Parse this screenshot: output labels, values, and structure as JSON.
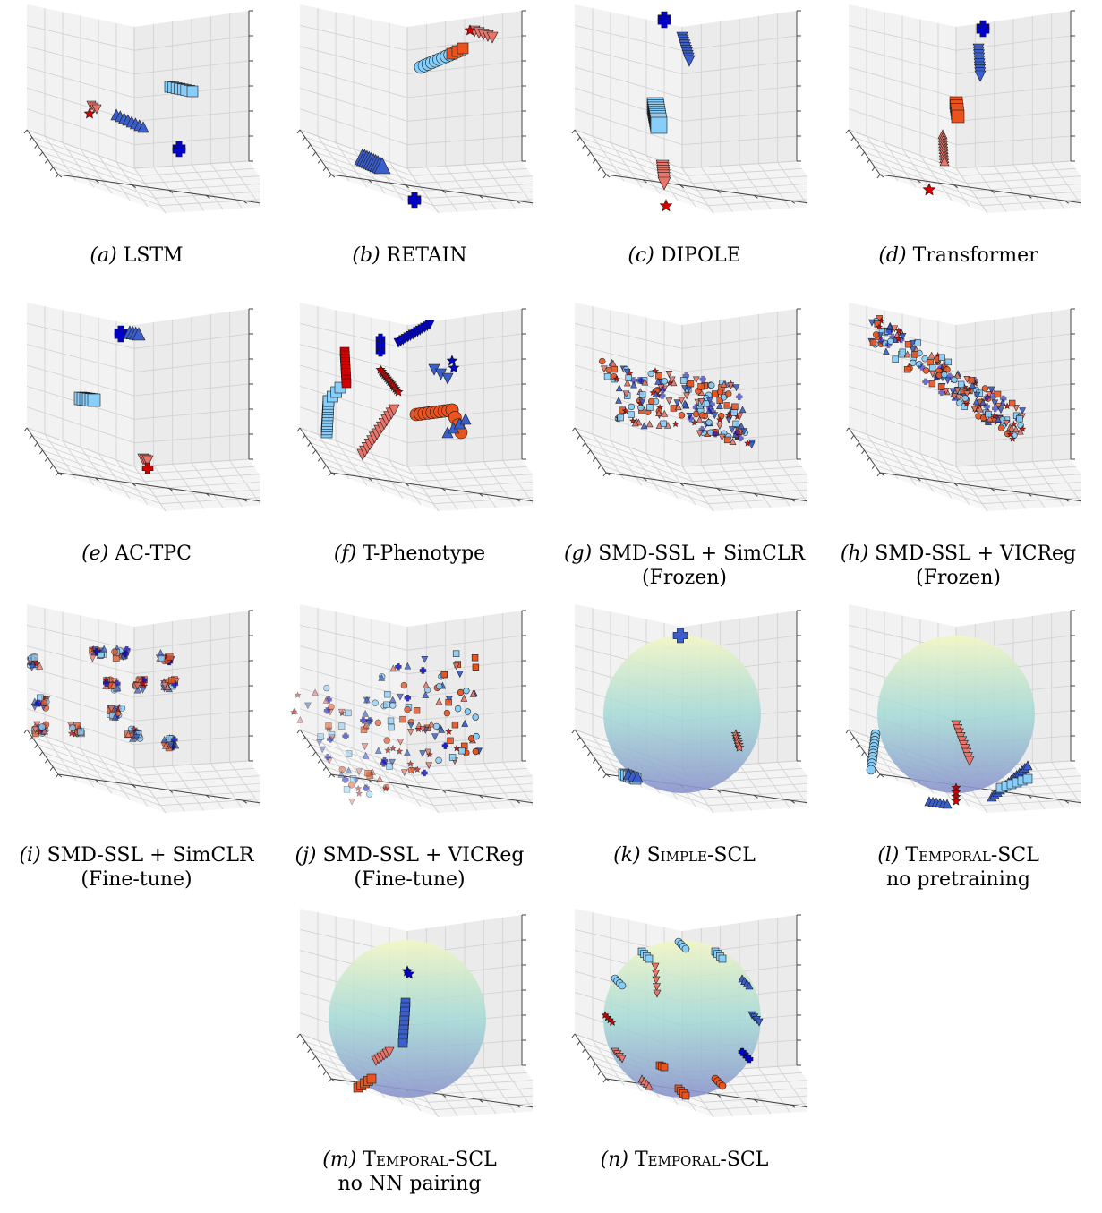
{
  "figure": {
    "marker_colors": {
      "light_blue": "#87CEFA",
      "blue": "#0000CD",
      "royal_blue": "#3A5FCD",
      "orange_red": "#E8531F",
      "salmon": "#E9756A",
      "red": "#D40000",
      "sphere_top": "#F3F7C4",
      "sphere_bottom": "#8A93CC"
    },
    "panels": [
      {
        "letter": "(a)",
        "title": "LSTM",
        "line2": "",
        "small_caps": false,
        "sphere": false,
        "style": "clusters"
      },
      {
        "letter": "(b)",
        "title": "RETAIN",
        "line2": "",
        "small_caps": false,
        "sphere": false,
        "style": "clusters"
      },
      {
        "letter": "(c)",
        "title": "DIPOLE",
        "line2": "",
        "small_caps": false,
        "sphere": false,
        "style": "clusters"
      },
      {
        "letter": "(d)",
        "title": "Transformer",
        "line2": "",
        "small_caps": false,
        "sphere": false,
        "style": "clusters"
      },
      {
        "letter": "(e)",
        "title": "AC-TPC",
        "line2": "",
        "small_caps": false,
        "sphere": false,
        "style": "clusters"
      },
      {
        "letter": "(f)",
        "title": "T-Phenotype",
        "line2": "",
        "small_caps": false,
        "sphere": false,
        "style": "strands"
      },
      {
        "letter": "(g)",
        "title": "SMD-SSL + SimCLR",
        "line2": "(Frozen)",
        "small_caps": false,
        "sphere": false,
        "style": "cloud"
      },
      {
        "letter": "(h)",
        "title": "SMD-SSL + VICReg",
        "line2": "(Frozen)",
        "small_caps": false,
        "sphere": false,
        "style": "cloud"
      },
      {
        "letter": "(i)",
        "title": "SMD-SSL + SimCLR",
        "line2": "(Fine-tune)",
        "small_caps": false,
        "sphere": false,
        "style": "blobs"
      },
      {
        "letter": "(j)",
        "title": "SMD-SSL + VICReg",
        "line2": "(Fine-tune)",
        "small_caps": false,
        "sphere": false,
        "style": "fan"
      },
      {
        "letter": "(k)",
        "title": "Simple-SCL",
        "line2": "",
        "small_caps": true,
        "sphere": true,
        "style": "sphere-clusters"
      },
      {
        "letter": "(l)",
        "title": "Temporal-SCL",
        "line2": "no pretraining",
        "small_caps": true,
        "sphere": true,
        "style": "sphere-trails"
      },
      {
        "letter": "(m)",
        "title": "Temporal-SCL",
        "line2": "no NN pairing",
        "small_caps": true,
        "sphere": true,
        "style": "sphere-trails"
      },
      {
        "letter": "(n)",
        "title": "Temporal-SCL",
        "line2": "",
        "small_caps": true,
        "sphere": true,
        "style": "sphere-ring"
      }
    ]
  },
  "chart_data": [
    {
      "type": "scatter",
      "panel": "(a)",
      "title": "LSTM",
      "dims": 3,
      "tick_labels": false
    },
    {
      "type": "scatter",
      "panel": "(b)",
      "title": "RETAIN",
      "dims": 3,
      "tick_labels": false
    },
    {
      "type": "scatter",
      "panel": "(c)",
      "title": "DIPOLE",
      "dims": 3,
      "tick_labels": false
    },
    {
      "type": "scatter",
      "panel": "(d)",
      "title": "Transformer",
      "dims": 3,
      "tick_labels": false
    },
    {
      "type": "scatter",
      "panel": "(e)",
      "title": "AC-TPC",
      "dims": 3,
      "tick_labels": false
    },
    {
      "type": "scatter",
      "panel": "(f)",
      "title": "T-Phenotype",
      "dims": 3,
      "tick_labels": false
    },
    {
      "type": "scatter",
      "panel": "(g)",
      "title": "SMD-SSL + SimCLR (Frozen)",
      "dims": 3,
      "tick_labels": false
    },
    {
      "type": "scatter",
      "panel": "(h)",
      "title": "SMD-SSL + VICReg (Frozen)",
      "dims": 3,
      "tick_labels": false
    },
    {
      "type": "scatter",
      "panel": "(i)",
      "title": "SMD-SSL + SimCLR (Fine-tune)",
      "dims": 3,
      "tick_labels": false
    },
    {
      "type": "scatter",
      "panel": "(j)",
      "title": "SMD-SSL + VICReg (Fine-tune)",
      "dims": 3,
      "tick_labels": false
    },
    {
      "type": "scatter",
      "panel": "(k)",
      "title": "Simple-SCL",
      "dims": 3,
      "tick_labels": false,
      "unit_sphere": true
    },
    {
      "type": "scatter",
      "panel": "(l)",
      "title": "Temporal-SCL no pretraining",
      "dims": 3,
      "tick_labels": false,
      "unit_sphere": true
    },
    {
      "type": "scatter",
      "panel": "(m)",
      "title": "Temporal-SCL no NN pairing",
      "dims": 3,
      "tick_labels": false,
      "unit_sphere": true
    },
    {
      "type": "scatter",
      "panel": "(n)",
      "title": "Temporal-SCL",
      "dims": 3,
      "tick_labels": false,
      "unit_sphere": true
    }
  ]
}
